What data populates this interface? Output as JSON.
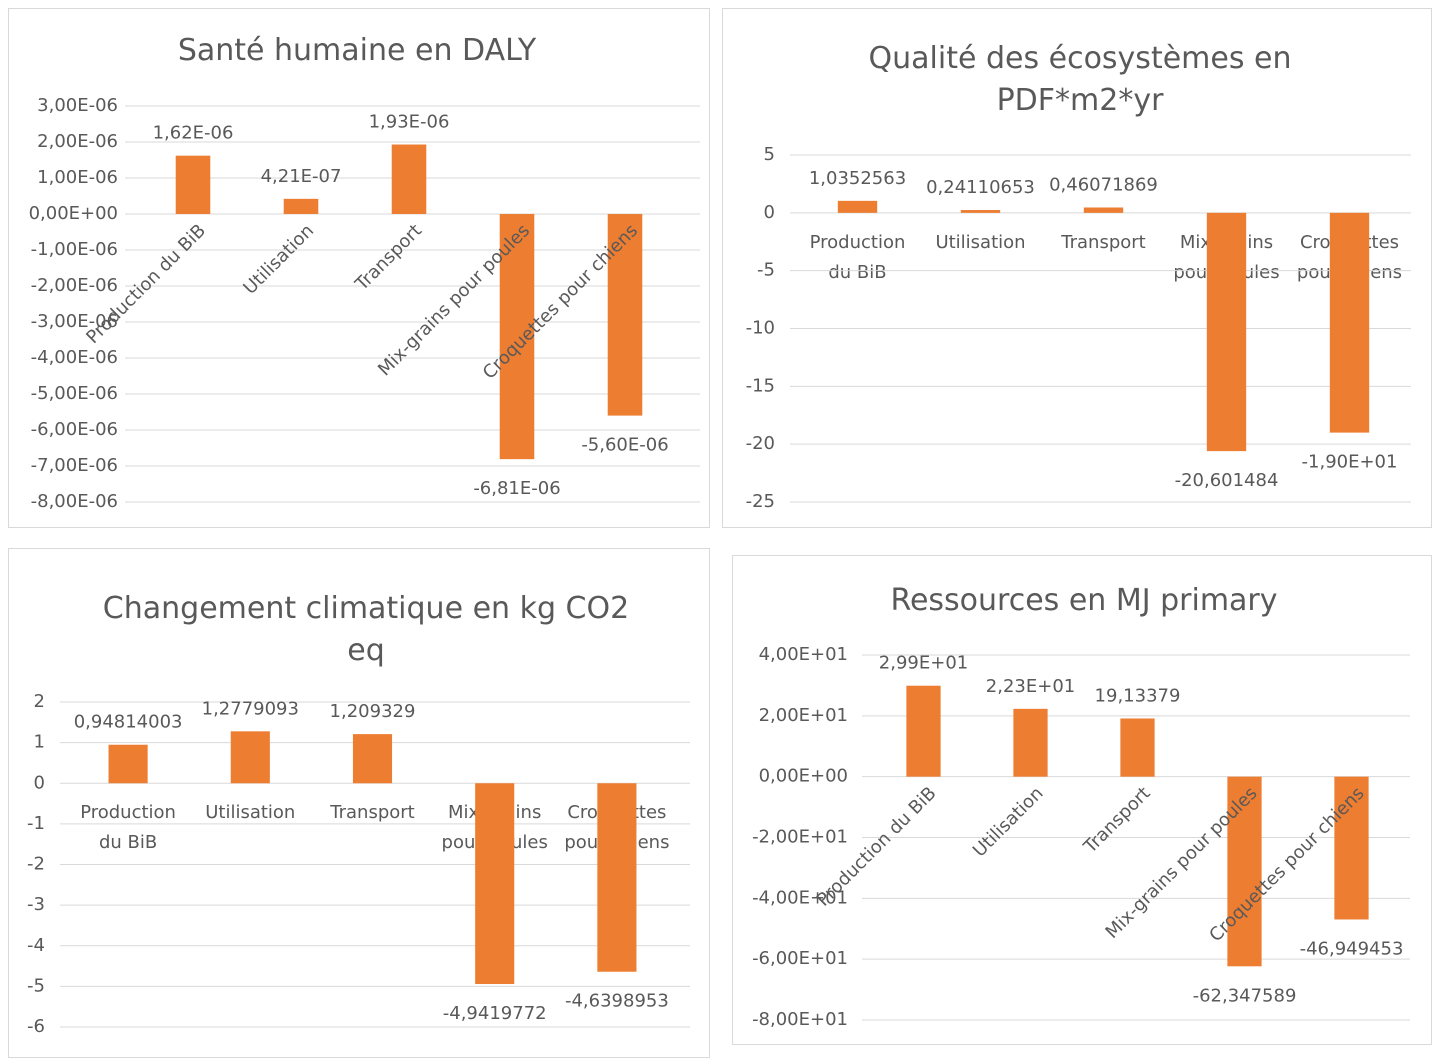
{
  "chart_data": [
    {
      "type": "bar",
      "title": "Santé humaine en DALY",
      "categories": [
        "Production du BiB",
        "Utilisation",
        "Transport",
        "Mix-grains pour poules",
        "Croquettes pour chiens"
      ],
      "values": [
        1.62e-06,
        4.21e-07,
        1.93e-06,
        -6.81e-06,
        -5.6e-06
      ],
      "value_labels": [
        "1,62E-06",
        "4,21E-07",
        "1,93E-06",
        "-6,81E-06",
        "-5,60E-06"
      ],
      "color": "#ed7d31",
      "ylim": [
        -8e-06,
        3e-06
      ],
      "yticks": [
        {
          "value": 3e-06,
          "label": "3,00E-06"
        },
        {
          "value": 2e-06,
          "label": "2,00E-06"
        },
        {
          "value": 1e-06,
          "label": "1,00E-06"
        },
        {
          "value": 0,
          "label": "0,00E+00"
        },
        {
          "value": -1e-06,
          "label": "-1,00E-06"
        },
        {
          "value": -2e-06,
          "label": "-2,00E-06"
        },
        {
          "value": -3e-06,
          "label": "-3,00E-06"
        },
        {
          "value": -4e-06,
          "label": "-4,00E-06"
        },
        {
          "value": -5e-06,
          "label": "-5,00E-06"
        },
        {
          "value": -6e-06,
          "label": "-6,00E-06"
        },
        {
          "value": -7e-06,
          "label": "-7,00E-06"
        },
        {
          "value": -8e-06,
          "label": "-8,00E-06"
        }
      ],
      "grid": true
    },
    {
      "type": "bar",
      "title": "Qualité des écosystèmes en PDF*m2*yr",
      "categories": [
        "Production du BiB",
        "Utilisation",
        "Transport",
        "Mix-grains pour poules",
        "Croquettes pour chiens"
      ],
      "values": [
        1.0352563,
        0.24110653,
        0.46071869,
        -20.601484,
        -19.0
      ],
      "value_labels": [
        "1,0352563",
        "0,24110653",
        "0,46071869",
        "-20,601484",
        "-1,90E+01"
      ],
      "color": "#ed7d31",
      "ylim": [
        -25,
        5
      ],
      "yticks": [
        5,
        0,
        -5,
        -10,
        -15,
        -20,
        -25
      ],
      "grid": true
    },
    {
      "type": "bar",
      "title": "Changement climatique en kg CO2 eq",
      "categories": [
        "Production du BiB",
        "Utilisation",
        "Transport",
        "Mix-grains pour poules",
        "Croquettes pour chiens"
      ],
      "values": [
        0.94814003,
        1.2779093,
        1.209329,
        -4.9419772,
        -4.6398953
      ],
      "value_labels": [
        "0,94814003",
        "1,2779093",
        "1,209329",
        "-4,9419772",
        "-4,6398953"
      ],
      "color": "#ed7d31",
      "ylim": [
        -6,
        2
      ],
      "yticks": [
        2,
        1,
        0,
        -1,
        -2,
        -3,
        -4,
        -5,
        -6
      ],
      "grid": true
    },
    {
      "type": "bar",
      "title": "Ressources en MJ primary",
      "categories": [
        "Production du BiB",
        "Utilisation",
        "Transport",
        "Mix-grains pour poules",
        "Croquettes pour chiens"
      ],
      "values": [
        29.9,
        22.3,
        19.13379,
        -62.347589,
        -46.949453
      ],
      "value_labels": [
        "2,99E+01",
        "2,23E+01",
        "19,13379",
        "-62,347589",
        "-46,949453"
      ],
      "color": "#ed7d31",
      "ylim": [
        -80,
        40
      ],
      "yticks": [
        {
          "value": 40,
          "label": "4,00E+01"
        },
        {
          "value": 20,
          "label": "2,00E+01"
        },
        {
          "value": 0,
          "label": "0,00E+00"
        },
        {
          "value": -20,
          "label": "-2,00E+01"
        },
        {
          "value": -40,
          "label": "-4,00E+01"
        },
        {
          "value": -60,
          "label": "-6,00E+01"
        },
        {
          "value": -80,
          "label": "-8,00E+01"
        }
      ],
      "grid": true
    }
  ]
}
